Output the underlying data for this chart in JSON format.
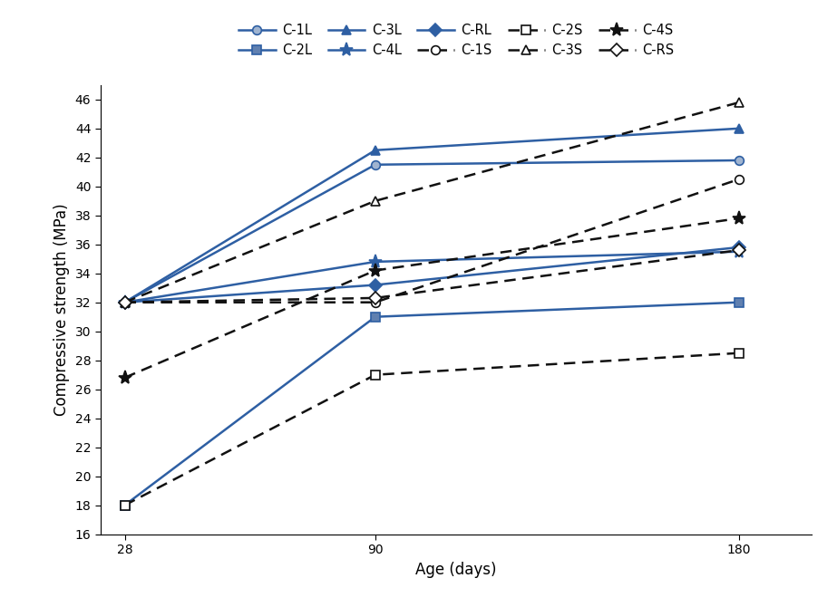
{
  "x": [
    28,
    90,
    180
  ],
  "series": {
    "C-1L": [
      32.0,
      41.5,
      41.8
    ],
    "C-2L": [
      18.0,
      31.0,
      32.0
    ],
    "C-3L": [
      32.0,
      42.5,
      44.0
    ],
    "C-4L": [
      32.0,
      34.8,
      35.5
    ],
    "C-RL": [
      32.0,
      33.2,
      35.8
    ],
    "C-1S": [
      32.0,
      32.0,
      40.5
    ],
    "C-2S": [
      18.0,
      27.0,
      28.5
    ],
    "C-3S": [
      32.0,
      39.0,
      45.8
    ],
    "C-4S": [
      26.8,
      34.2,
      37.8
    ],
    "C-RS": [
      32.0,
      32.3,
      35.6
    ]
  },
  "markers": {
    "C-1L": "o",
    "C-2L": "s",
    "C-3L": "^",
    "C-4L": "*",
    "C-RL": "D",
    "C-1S": "o",
    "C-2S": "s",
    "C-3S": "^",
    "C-4S": "*",
    "C-RS": "D"
  },
  "ylabel": "Compressive strength (MPa)",
  "xlabel": "Age (days)",
  "ylim": [
    16,
    47
  ],
  "yticks": [
    16,
    18,
    20,
    22,
    24,
    26,
    28,
    30,
    32,
    34,
    36,
    38,
    40,
    42,
    44,
    46
  ],
  "xticks": [
    28,
    90,
    180
  ],
  "line_color_L": "#2e5fa3",
  "line_color_S": "#111111",
  "linewidth": 1.8,
  "markersize_regular": 7,
  "markersize_star": 11,
  "L_series": [
    "C-1L",
    "C-2L",
    "C-3L",
    "C-4L",
    "C-RL"
  ],
  "S_series": [
    "C-1S",
    "C-2S",
    "C-3S",
    "C-4S",
    "C-RS"
  ]
}
